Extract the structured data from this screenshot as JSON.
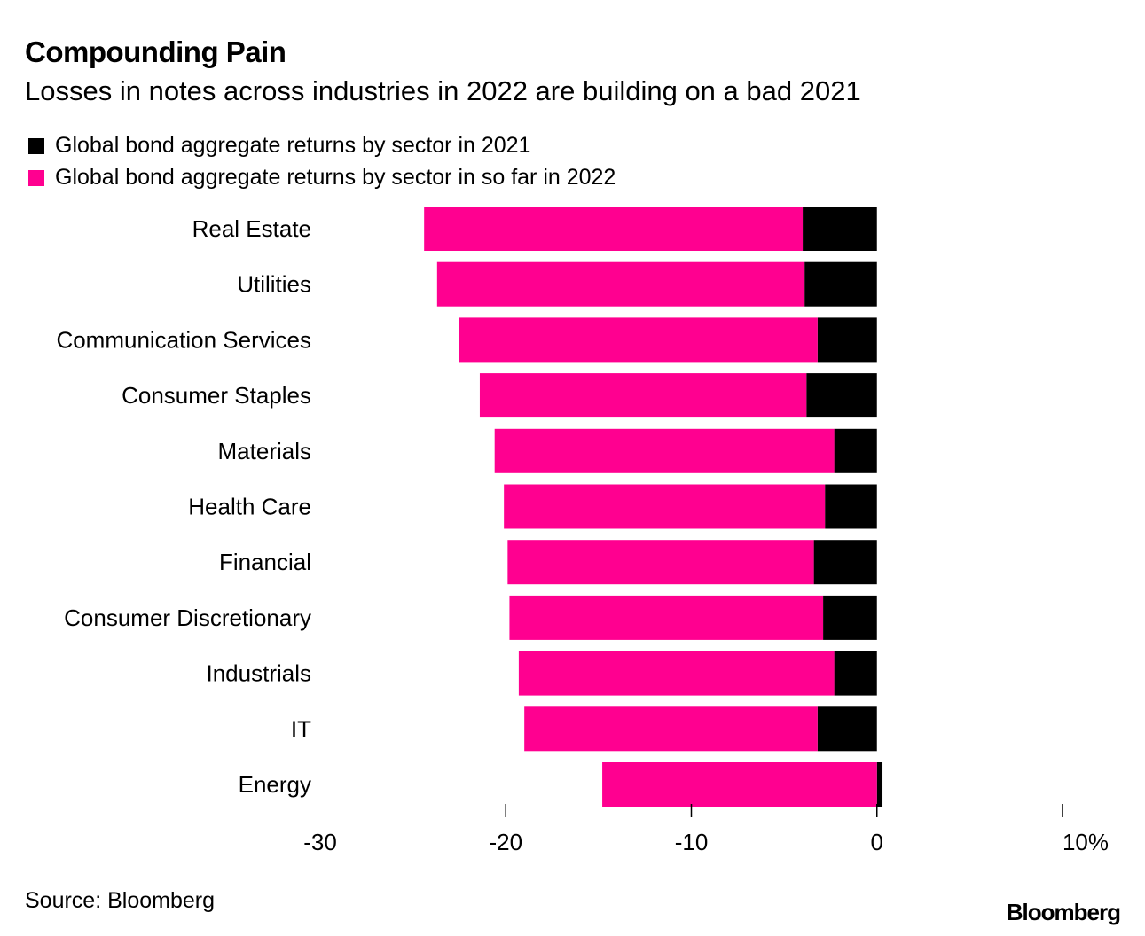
{
  "header": {
    "title": "Compounding Pain",
    "subtitle": "Losses in notes across industries in 2022 are building on a bad 2021"
  },
  "footer": {
    "source": "Source: Bloomberg",
    "logo": "Bloomberg"
  },
  "colors": {
    "2021": "#000000",
    "2022": "#ff0090"
  },
  "chart_data": {
    "type": "bar",
    "orientation": "horizontal",
    "stacked": true,
    "title": "Compounding Pain",
    "subtitle": "Losses in notes across industries in 2022 are building on a bad 2021",
    "xlabel": "",
    "ylabel": "",
    "xlim": [
      -30,
      10
    ],
    "x_ticks": [
      -30,
      -20,
      -10,
      0,
      10
    ],
    "x_tick_labels": [
      "-30",
      "-20",
      "-10",
      "0",
      "10%"
    ],
    "grid": false,
    "legend_position": "top-left",
    "categories": [
      "Real Estate",
      "Utilities",
      "Communication Services",
      "Consumer Staples",
      "Materials",
      "Health Care",
      "Financial",
      "Consumer Discretionary",
      "Industrials",
      "IT",
      "Energy"
    ],
    "series": [
      {
        "name": "Global bond aggregate returns by sector in 2021",
        "color": "#000000",
        "values": [
          -4.0,
          -3.9,
          -3.2,
          -3.8,
          -2.3,
          -2.8,
          -3.4,
          -2.9,
          -2.3,
          -3.2,
          0.3
        ]
      },
      {
        "name": "Global bond aggregate returns by sector in so far in 2022",
        "color": "#ff0090",
        "values": [
          -20.4,
          -19.8,
          -19.3,
          -17.6,
          -18.3,
          -17.3,
          -16.5,
          -16.9,
          -17.0,
          -15.8,
          -14.8
        ]
      }
    ],
    "source": "Source: Bloomberg"
  }
}
